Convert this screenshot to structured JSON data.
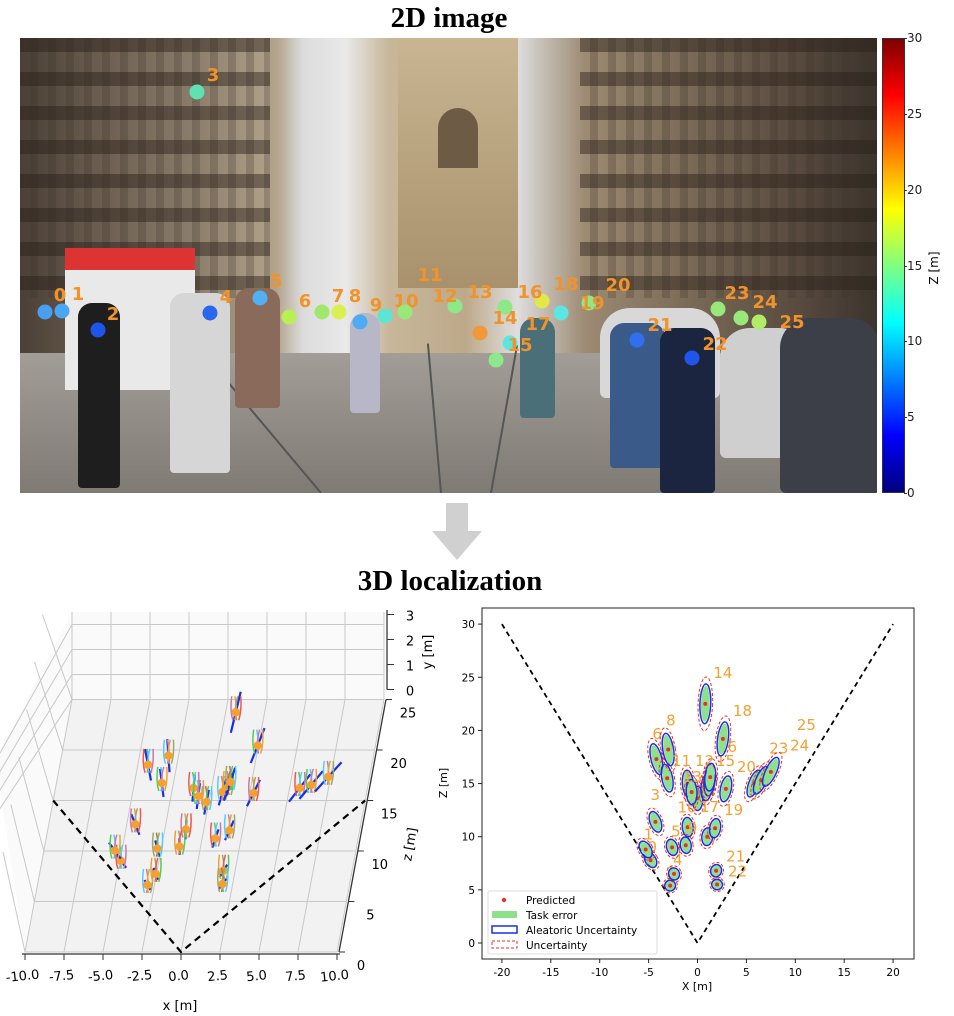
{
  "figure": {
    "title_2d": "2D image",
    "title_3d": "3D localization"
  },
  "photo": {
    "people": [
      {
        "label": "0",
        "color": "#4a9ef2"
      },
      {
        "label": "1",
        "color": "#4aa6f2"
      },
      {
        "label": "2",
        "color": "#1f55ea"
      },
      {
        "label": "3",
        "color": "#5fe2b2"
      },
      {
        "label": "4",
        "color": "#2d66ee"
      },
      {
        "label": "5",
        "color": "#4fb0f2"
      },
      {
        "label": "6",
        "color": "#b9ef52"
      },
      {
        "label": "7",
        "color": "#9ee86e"
      },
      {
        "label": "8",
        "color": "#d9ef52"
      },
      {
        "label": "9",
        "color": "#4eaaf2"
      },
      {
        "label": "10",
        "color": "#5ce6d2"
      },
      {
        "label": "11",
        "color": "#98e87a"
      },
      {
        "label": "12",
        "color": "#8ce88a"
      },
      {
        "label": "13",
        "color": "#8ce88a"
      },
      {
        "label": "14",
        "color": "#f0993a"
      },
      {
        "label": "15",
        "color": "#5ce6e2"
      },
      {
        "label": "16",
        "color": "#e2e84a"
      },
      {
        "label": "17",
        "color": "#8ce88a"
      },
      {
        "label": "18",
        "color": "#5ce6e2"
      },
      {
        "label": "19",
        "color": "#8ce88a"
      },
      {
        "label": "21",
        "color": "#3070f0"
      },
      {
        "label": "22",
        "color": "#1f55ea"
      },
      {
        "label": "23",
        "color": "#98e87a"
      },
      {
        "label": "24",
        "color": "#98e87a"
      },
      {
        "label": "25",
        "color": "#b0ec66"
      },
      {
        "label": "20",
        "color": ""
      }
    ]
  },
  "colorbar": {
    "label": "Z [m]",
    "min": 0,
    "max": 30,
    "colormap": "jet",
    "ticks": [
      "0",
      "5",
      "10",
      "15",
      "20",
      "25",
      "30"
    ]
  },
  "chart_data": [
    {
      "type": "scatter3d",
      "xlabel": "x [m]",
      "ylabel": "y [m]",
      "zlabel": "z [m]",
      "xlim": [
        -10,
        10
      ],
      "ylim": [
        0,
        3
      ],
      "zlim": [
        0,
        25
      ],
      "xticks": [
        "-10.0",
        "-7.5",
        "-5.0",
        "-2.5",
        "0.0",
        "2.5",
        "5.0",
        "7.5",
        "10.0"
      ],
      "yticks": [
        "0",
        "1",
        "2",
        "3"
      ],
      "zticks": [
        "0",
        "5",
        "10",
        "15",
        "20",
        "25"
      ],
      "grid": true,
      "colors": {
        "point": "#f5a030",
        "uncertainty": "#1a2ee8",
        "field_of_view": "#000000",
        "floor": "#f2f2f2"
      },
      "points_source": "same persons as 2D bird's-eye view"
    },
    {
      "type": "scatter",
      "xlabel": "X [m]",
      "ylabel": "Z [m]",
      "xlim": [
        -22,
        22
      ],
      "ylim": [
        -1.5,
        31
      ],
      "xticks": [
        "-20",
        "-15",
        "-10",
        "-5",
        "0",
        "5",
        "10",
        "15",
        "20"
      ],
      "yticks": [
        "0",
        "5",
        "10",
        "15",
        "20",
        "25",
        "30"
      ],
      "grid": false,
      "legend_position": "bottom-left",
      "legend": [
        "Predicted",
        "Task error",
        "Aleatoric Uncertainty",
        "Uncertainty"
      ],
      "field_of_view": [
        [
          -20,
          30
        ],
        [
          0,
          0
        ],
        [
          20,
          30
        ]
      ],
      "colors": {
        "predicted": "#e8302a",
        "task_error": "#8fe08a",
        "aleatoric": "#1a2ee8",
        "uncertainty": "#e8302a",
        "label": "#f5a030"
      },
      "points": [
        {
          "label": "0",
          "x": -4.8,
          "z": 7.8
        },
        {
          "label": "1",
          "x": -5.3,
          "z": 8.8
        },
        {
          "label": "2",
          "x": -2.8,
          "z": 5.4
        },
        {
          "label": "3",
          "x": -4.3,
          "z": 11.4
        },
        {
          "label": "4",
          "x": -2.4,
          "z": 6.5
        },
        {
          "label": "5",
          "x": -2.6,
          "z": 9.0
        },
        {
          "label": "6",
          "x": -4.2,
          "z": 17.3
        },
        {
          "label": "7",
          "x": -3.1,
          "z": 15.5
        },
        {
          "label": "8",
          "x": -3.0,
          "z": 18.2
        },
        {
          "label": "9",
          "x": -1.0,
          "z": 10.9
        },
        {
          "label": "",
          "x": -1.2,
          "z": 9.2
        },
        {
          "label": "10",
          "x": 0.0,
          "z": 13.6
        },
        {
          "label": "11",
          "x": -1.0,
          "z": 15.0
        },
        {
          "label": "12",
          "x": -0.6,
          "z": 14.2
        },
        {
          "label": "13",
          "x": 0.9,
          "z": 14.6
        },
        {
          "label": "14",
          "x": 0.8,
          "z": 22.5
        },
        {
          "label": "15",
          "x": 1.2,
          "z": 15.1
        },
        {
          "label": "16",
          "x": 1.3,
          "z": 15.6
        },
        {
          "label": "17",
          "x": 1.0,
          "z": 10.0
        },
        {
          "label": "18",
          "x": 2.6,
          "z": 19.2
        },
        {
          "label": "19",
          "x": 1.8,
          "z": 10.8
        },
        {
          "label": "20",
          "x": 2.9,
          "z": 14.5
        },
        {
          "label": "21",
          "x": 1.9,
          "z": 6.8
        },
        {
          "label": "22",
          "x": 2.0,
          "z": 5.5
        },
        {
          "label": "23",
          "x": 5.8,
          "z": 15.0
        },
        {
          "label": "24",
          "x": 6.5,
          "z": 15.3
        },
        {
          "label": "25",
          "x": 7.5,
          "z": 16.1
        }
      ]
    }
  ]
}
